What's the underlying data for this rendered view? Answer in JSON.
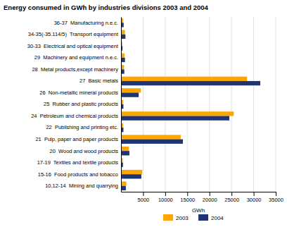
{
  "chart_data": {
    "type": "bar",
    "orientation": "horizontal",
    "title": "Energy consumed in GWh by industries divisions 2003 and 2004",
    "categories": [
      "10,12-14  Mining and quarrying",
      "15-16  Food products and tobacco",
      "17-19  Textiles and textile products",
      "20  Wood and wood products",
      "21  Pulp, paper and paper products",
      "22  Publishing and printing etc.",
      "24  Petroleum and chemical products",
      "25  Rubber and plastic products",
      "26  Non-metallic mineral products",
      "27  Basic metals",
      "28  Metal products,except machinery",
      "29  Machinery and equipment n.e.c.",
      "30-33  Electrical and optical equipment",
      "34-35(-35.114/5)  Transport equipment",
      "36-37  Manufacturing n.e.c."
    ],
    "series": [
      {
        "name": "2003",
        "color": "#FFA500",
        "values": [
          1200,
          4800,
          400,
          1800,
          13500,
          500,
          25500,
          500,
          4500,
          28500,
          700,
          800,
          300,
          900,
          500
        ]
      },
      {
        "name": "2004",
        "color": "#1f3572",
        "values": [
          1100,
          4600,
          450,
          1900,
          14000,
          550,
          24500,
          550,
          4000,
          31500,
          750,
          900,
          350,
          1000,
          600
        ]
      }
    ],
    "xlabel": "GWh",
    "xlim": [
      0,
      35000
    ],
    "xticks": [
      5000,
      10000,
      15000,
      20000,
      25000,
      30000,
      35000
    ],
    "grid": true,
    "legend": "bottom"
  }
}
